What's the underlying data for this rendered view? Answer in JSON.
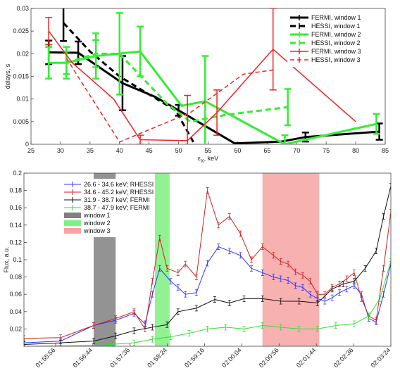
{
  "chart_data": [
    {
      "type": "line",
      "xlabel": "ε",
      "xlabel_sub": "X",
      "xlabel_unit": ", keV",
      "ylabel": "delays, s",
      "xlim": [
        25,
        85
      ],
      "ylim": [
        0,
        0.03
      ],
      "xticks": [
        "25",
        "30",
        "35",
        "40",
        "45",
        "50",
        "55",
        "60",
        "65",
        "70",
        "75",
        "80",
        "85"
      ],
      "yticks": [
        "0",
        "0.005",
        "0.01",
        "0.015",
        "0.02",
        "0.025",
        "0.03"
      ],
      "legend_position": "top-right",
      "series": [
        {
          "name": "FERMI, window 1",
          "color": "#000000",
          "dash": "none",
          "width": 3,
          "x": [
            28,
            33,
            40.5,
            46,
            50,
            59.5,
            67.5,
            71.5,
            84
          ],
          "y": [
            0.0203,
            0.0202,
            0.0135,
            0.0105,
            0.0075,
            0.0002,
            0.0006,
            0.0016,
            0.0028
          ],
          "err": [
            0.0026,
            0.0025,
            0.006,
            0,
            0.0012,
            0,
            0,
            0.001,
            0.0018
          ]
        },
        {
          "name": "HESSI, window 1",
          "color": "#000000",
          "dash": "8,5",
          "width": 3,
          "x": [
            30.5,
            35,
            40,
            45,
            49.5,
            52.5
          ],
          "y": [
            0.0268,
            0.0205,
            0.015,
            0.011,
            0.0075,
            0.0005
          ],
          "err": [
            0.004,
            0,
            0,
            0,
            0,
            0
          ]
        },
        {
          "name": "FERMI, window 2",
          "color": "#33ee33",
          "dash": "none",
          "width": 3,
          "x": [
            28,
            31,
            36,
            43.5,
            50.5,
            54.5,
            68,
            83.5
          ],
          "y": [
            0.018,
            0.018,
            0.0195,
            0.0205,
            0.0085,
            0.0095,
            0.0,
            0.0045
          ],
          "err": [
            0.0035,
            0.0035,
            0.005,
            0.0055,
            0,
            0.01,
            0.002,
            0.0022
          ]
        },
        {
          "name": "HESSI, window 2",
          "color": "#33ee33",
          "dash": "8,5",
          "width": 3,
          "x": [
            31,
            36,
            40,
            48,
            52,
            58,
            68.5
          ],
          "y": [
            0.018,
            0.02,
            0.02,
            0.009,
            0.005,
            0.0065,
            0.0082
          ],
          "err": [
            0.0025,
            0.003,
            0.009,
            0,
            0,
            0,
            0.004
          ]
        },
        {
          "name": "FERMI, window 3",
          "color": "#ee2222",
          "dash": "none",
          "width": 1.5,
          "x": [
            28,
            32,
            39,
            43.5,
            51.5,
            56.5,
            66,
            80
          ],
          "y": [
            0.025,
            0.018,
            0.01,
            0.001,
            0.0008,
            0.007,
            0.021,
            0.005
          ],
          "err": [
            0.003,
            0,
            0,
            0.001,
            0.01,
            0.005,
            0.009,
            0
          ]
        },
        {
          "name": "HESSI, window 3",
          "color": "#ee2222",
          "dash": "6,4",
          "width": 1.5,
          "x": [
            31,
            40,
            52,
            61,
            66.5
          ],
          "y": [
            0.019,
            0.0005,
            0.007,
            0.0155,
            0.0165
          ],
          "err": [
            0,
            0,
            0,
            0,
            0
          ]
        }
      ]
    },
    {
      "type": "line",
      "xlabel": "",
      "ylabel": "Flux, a.u.",
      "xlim": [
        0,
        1
      ],
      "ylim": [
        0,
        0.2
      ],
      "xticks": [
        "01:55:56",
        "01:56:44",
        "01:57:36",
        "01:58:24",
        "01:59:16",
        "02:00:04",
        "02:00:56",
        "02:01:44",
        "02:02:36",
        "02:03:24"
      ],
      "yticks": [
        "0.02",
        "0.04",
        "0.06",
        "0.08",
        "0.1",
        "0.12",
        "0.14",
        "0.16",
        "0.18",
        "0.2"
      ],
      "legend_position": "top-left",
      "windows": [
        {
          "name": "window 1",
          "color": "#808080",
          "x0": 0.19,
          "x1": 0.25
        },
        {
          "name": "window 2",
          "color": "#7ff07f",
          "x0": 0.357,
          "x1": 0.397
        },
        {
          "name": "window 3",
          "color": "#f7a3a3",
          "x0": 0.65,
          "x1": 0.805
        }
      ],
      "series": [
        {
          "name": "26.6 - 34.6 keV; RHESSI",
          "color": "#3333ff",
          "x": [
            0,
            0.1,
            0.19,
            0.25,
            0.3,
            0.33,
            0.35,
            0.37,
            0.4,
            0.42,
            0.44,
            0.47,
            0.5,
            0.53,
            0.56,
            0.59,
            0.62,
            0.65,
            0.68,
            0.7,
            0.72,
            0.74,
            0.76,
            0.78,
            0.8,
            0.82,
            0.84,
            0.86,
            0.88,
            0.9,
            0.92,
            0.94,
            0.96,
            0.98,
            1.0
          ],
          "y": [
            0.004,
            0.006,
            0.024,
            0.03,
            0.038,
            0.026,
            0.06,
            0.09,
            0.075,
            0.068,
            0.06,
            0.062,
            0.096,
            0.115,
            0.11,
            0.105,
            0.09,
            0.085,
            0.08,
            0.078,
            0.076,
            0.07,
            0.068,
            0.06,
            0.055,
            0.052,
            0.056,
            0.062,
            0.066,
            0.07,
            0.06,
            0.032,
            0.028,
            0.06,
            0.095
          ]
        },
        {
          "name": "34.6 - 45.2 keV; RHESSI",
          "color": "#cc2222",
          "x": [
            0,
            0.1,
            0.19,
            0.25,
            0.3,
            0.33,
            0.35,
            0.37,
            0.39,
            0.42,
            0.44,
            0.47,
            0.5,
            0.53,
            0.56,
            0.59,
            0.62,
            0.65,
            0.68,
            0.7,
            0.72,
            0.74,
            0.76,
            0.78,
            0.8,
            0.82,
            0.84,
            0.86,
            0.88,
            0.9,
            0.92,
            0.94,
            0.96,
            0.98,
            1.0
          ],
          "y": [
            0.009,
            0.01,
            0.024,
            0.032,
            0.04,
            0.02,
            0.075,
            0.125,
            0.09,
            0.085,
            0.095,
            0.08,
            0.18,
            0.14,
            0.15,
            0.13,
            0.1,
            0.115,
            0.105,
            0.098,
            0.095,
            0.086,
            0.082,
            0.075,
            0.06,
            0.06,
            0.068,
            0.072,
            0.078,
            0.085,
            0.055,
            0.035,
            0.03,
            0.09,
            0.155
          ]
        },
        {
          "name": "31.9 - 38.7 keV; FERMI",
          "color": "#111111",
          "x": [
            0,
            0.1,
            0.19,
            0.25,
            0.3,
            0.35,
            0.39,
            0.42,
            0.47,
            0.52,
            0.56,
            0.6,
            0.65,
            0.7,
            0.75,
            0.8,
            0.84,
            0.87,
            0.9,
            0.93,
            0.96,
            0.98,
            1.0
          ],
          "y": [
            0.002,
            0.004,
            0.006,
            0.012,
            0.018,
            0.022,
            0.025,
            0.04,
            0.044,
            0.054,
            0.05,
            0.055,
            0.055,
            0.052,
            0.052,
            0.05,
            0.066,
            0.072,
            0.075,
            0.09,
            0.11,
            0.15,
            0.185
          ]
        },
        {
          "name": "38.7 - 47.9 keV; FERMI",
          "color": "#33dd33",
          "x": [
            0,
            0.2,
            0.3,
            0.35,
            0.4,
            0.45,
            0.5,
            0.55,
            0.6,
            0.65,
            0.7,
            0.75,
            0.8,
            0.85,
            0.9,
            0.94,
            0.97,
            1.0
          ],
          "y": [
            0.0,
            0.001,
            0.004,
            0.008,
            0.011,
            0.015,
            0.02,
            0.022,
            0.02,
            0.024,
            0.022,
            0.02,
            0.02,
            0.024,
            0.026,
            0.035,
            0.055,
            0.098
          ]
        }
      ]
    }
  ]
}
